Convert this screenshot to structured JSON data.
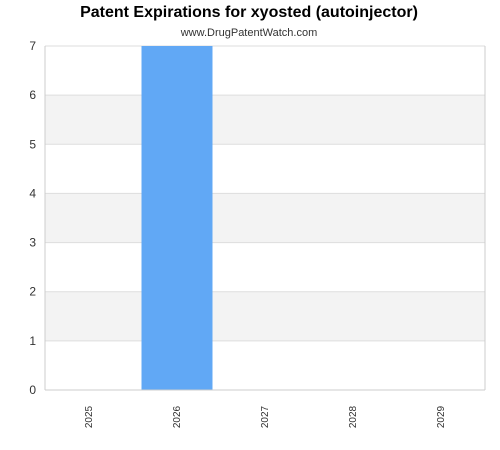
{
  "chart_data": {
    "type": "bar",
    "title": "Patent Expirations for xyosted (autoinjector)",
    "subtitle": "www.DrugPatentWatch.com",
    "xlabel": "",
    "ylabel": "",
    "categories": [
      "2025",
      "2026",
      "2027",
      "2028",
      "2029"
    ],
    "values": [
      0,
      7,
      0,
      0,
      0
    ],
    "ylim": [
      0,
      7
    ],
    "yticks": [
      "0",
      "1",
      "2",
      "3",
      "4",
      "5",
      "6",
      "7"
    ],
    "grid": true,
    "legend": "none"
  },
  "colors": {
    "bar": "#61a8f5",
    "band_alt": "#f3f3f3",
    "band": "#ffffff",
    "gridline": "#dddddd",
    "axis": "#cccccc",
    "text": "#333333",
    "title": "#000000"
  }
}
